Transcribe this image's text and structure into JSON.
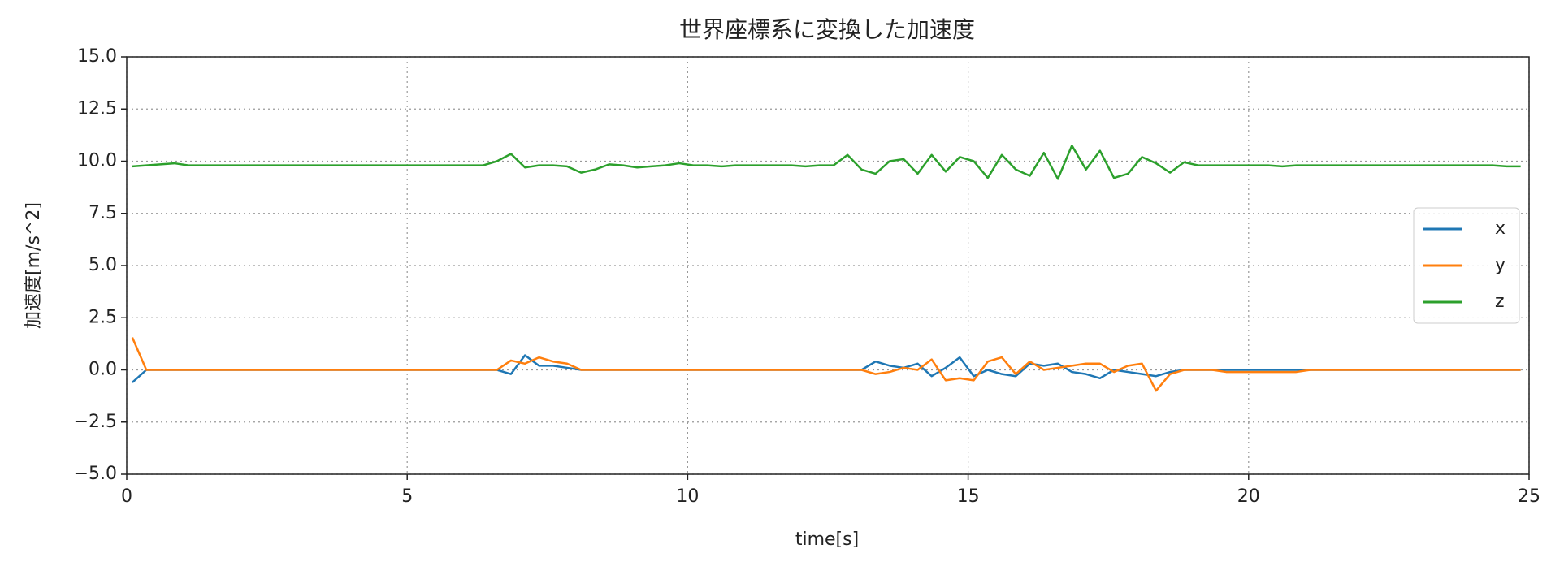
{
  "chart_data": {
    "type": "line",
    "title": "世界座標系に変換した加速度",
    "x_label": "time[s]",
    "y_label": "加速度[m/s^2]",
    "x": [
      0.1,
      0.35,
      0.6,
      0.85,
      1.1,
      1.35,
      1.6,
      1.85,
      2.1,
      2.35,
      2.6,
      2.85,
      3.1,
      3.35,
      3.6,
      3.85,
      4.1,
      4.35,
      4.6,
      4.85,
      5.1,
      5.35,
      5.6,
      5.85,
      6.1,
      6.35,
      6.6,
      6.85,
      7.1,
      7.35,
      7.6,
      7.85,
      8.1,
      8.35,
      8.6,
      8.85,
      9.1,
      9.35,
      9.6,
      9.85,
      10.1,
      10.35,
      10.6,
      10.85,
      11.1,
      11.35,
      11.6,
      11.85,
      12.1,
      12.35,
      12.6,
      12.85,
      13.1,
      13.35,
      13.6,
      13.85,
      14.1,
      14.35,
      14.6,
      14.85,
      15.1,
      15.35,
      15.6,
      15.85,
      16.1,
      16.35,
      16.6,
      16.85,
      17.1,
      17.35,
      17.6,
      17.85,
      18.1,
      18.35,
      18.6,
      18.85,
      19.1,
      19.35,
      19.6,
      19.85,
      20.1,
      20.35,
      20.6,
      20.85,
      21.1,
      21.35,
      21.6,
      21.85,
      22.1,
      22.35,
      22.6,
      22.85,
      23.1,
      23.35,
      23.6,
      23.85,
      24.1,
      24.35,
      24.6,
      24.85
    ],
    "series": [
      {
        "name": "x",
        "color": "#1f77b4",
        "values": [
          -0.6,
          0,
          0,
          0,
          0,
          0,
          0,
          0,
          0,
          0,
          0,
          0,
          0,
          0,
          0,
          0,
          0,
          0,
          0,
          0,
          0,
          0,
          0,
          0,
          0,
          0,
          0,
          -0.2,
          0.7,
          0.2,
          0.2,
          0.1,
          0,
          0,
          0,
          0,
          0,
          0,
          0,
          0,
          0,
          0,
          0,
          0,
          0,
          0,
          0,
          0,
          0,
          0,
          0,
          0,
          0,
          0.4,
          0.2,
          0.1,
          0.3,
          -0.3,
          0.1,
          0.6,
          -0.3,
          0,
          -0.2,
          -0.3,
          0.3,
          0.2,
          0.3,
          -0.1,
          -0.2,
          -0.4,
          0,
          -0.1,
          -0.2,
          -0.3,
          -0.1,
          0,
          0,
          0,
          0,
          0,
          0,
          0,
          0,
          0,
          0,
          0,
          0,
          0,
          0,
          0,
          0,
          0,
          0,
          0,
          0,
          0,
          0,
          0,
          0,
          0
        ]
      },
      {
        "name": "y",
        "color": "#ff7f0e",
        "values": [
          1.55,
          0,
          0,
          0,
          0,
          0,
          0,
          0,
          0,
          0,
          0,
          0,
          0,
          0,
          0,
          0,
          0,
          0,
          0,
          0,
          0,
          0,
          0,
          0,
          0,
          0,
          0,
          0.45,
          0.3,
          0.6,
          0.4,
          0.3,
          0,
          0,
          0,
          0,
          0,
          0,
          0,
          0,
          0,
          0,
          0,
          0,
          0,
          0,
          0,
          0,
          0,
          0,
          0,
          0,
          0,
          -0.2,
          -0.1,
          0.1,
          0,
          0.5,
          -0.5,
          -0.4,
          -0.5,
          0.4,
          0.6,
          -0.2,
          0.4,
          0,
          0.1,
          0.2,
          0.3,
          0.3,
          -0.1,
          0.2,
          0.3,
          -1.0,
          -0.2,
          0,
          0,
          0,
          -0.1,
          -0.1,
          -0.1,
          -0.1,
          -0.1,
          -0.1,
          0,
          0,
          0,
          0,
          0,
          0,
          0,
          0,
          0,
          0,
          0,
          0,
          0,
          0,
          0,
          0
        ]
      },
      {
        "name": "z",
        "color": "#2ca02c",
        "values": [
          9.75,
          9.8,
          9.85,
          9.9,
          9.8,
          9.8,
          9.8,
          9.8,
          9.8,
          9.8,
          9.8,
          9.8,
          9.8,
          9.8,
          9.8,
          9.8,
          9.8,
          9.8,
          9.8,
          9.8,
          9.8,
          9.8,
          9.8,
          9.8,
          9.8,
          9.8,
          10.0,
          10.35,
          9.7,
          9.8,
          9.8,
          9.75,
          9.45,
          9.6,
          9.85,
          9.8,
          9.7,
          9.75,
          9.8,
          9.9,
          9.8,
          9.8,
          9.75,
          9.8,
          9.8,
          9.8,
          9.8,
          9.8,
          9.75,
          9.8,
          9.8,
          10.3,
          9.6,
          9.4,
          10.0,
          10.1,
          9.4,
          10.3,
          9.5,
          10.2,
          10.0,
          9.2,
          10.3,
          9.6,
          9.3,
          10.4,
          9.15,
          10.75,
          9.6,
          10.5,
          9.2,
          9.4,
          10.2,
          9.9,
          9.45,
          9.95,
          9.8,
          9.8,
          9.8,
          9.8,
          9.8,
          9.8,
          9.75,
          9.8,
          9.8,
          9.8,
          9.8,
          9.8,
          9.8,
          9.8,
          9.8,
          9.8,
          9.8,
          9.8,
          9.8,
          9.8,
          9.8,
          9.8,
          9.75,
          9.75
        ]
      }
    ],
    "xlim": [
      0,
      25
    ],
    "xticks": [
      0,
      5,
      10,
      15,
      20,
      25
    ],
    "ylim": [
      -5,
      15
    ],
    "yticks": [
      {
        "value": -5,
        "label": "−5.0"
      },
      {
        "value": -2.5,
        "label": "−2.5"
      },
      {
        "value": 0,
        "label": "0.0"
      },
      {
        "value": 2.5,
        "label": "2.5"
      },
      {
        "value": 5,
        "label": "5.0"
      },
      {
        "value": 7.5,
        "label": "7.5"
      },
      {
        "value": 10,
        "label": "10.0"
      },
      {
        "value": 12.5,
        "label": "12.5"
      },
      {
        "value": 15,
        "label": "15.0"
      }
    ],
    "grid": true,
    "legend": "center right"
  }
}
